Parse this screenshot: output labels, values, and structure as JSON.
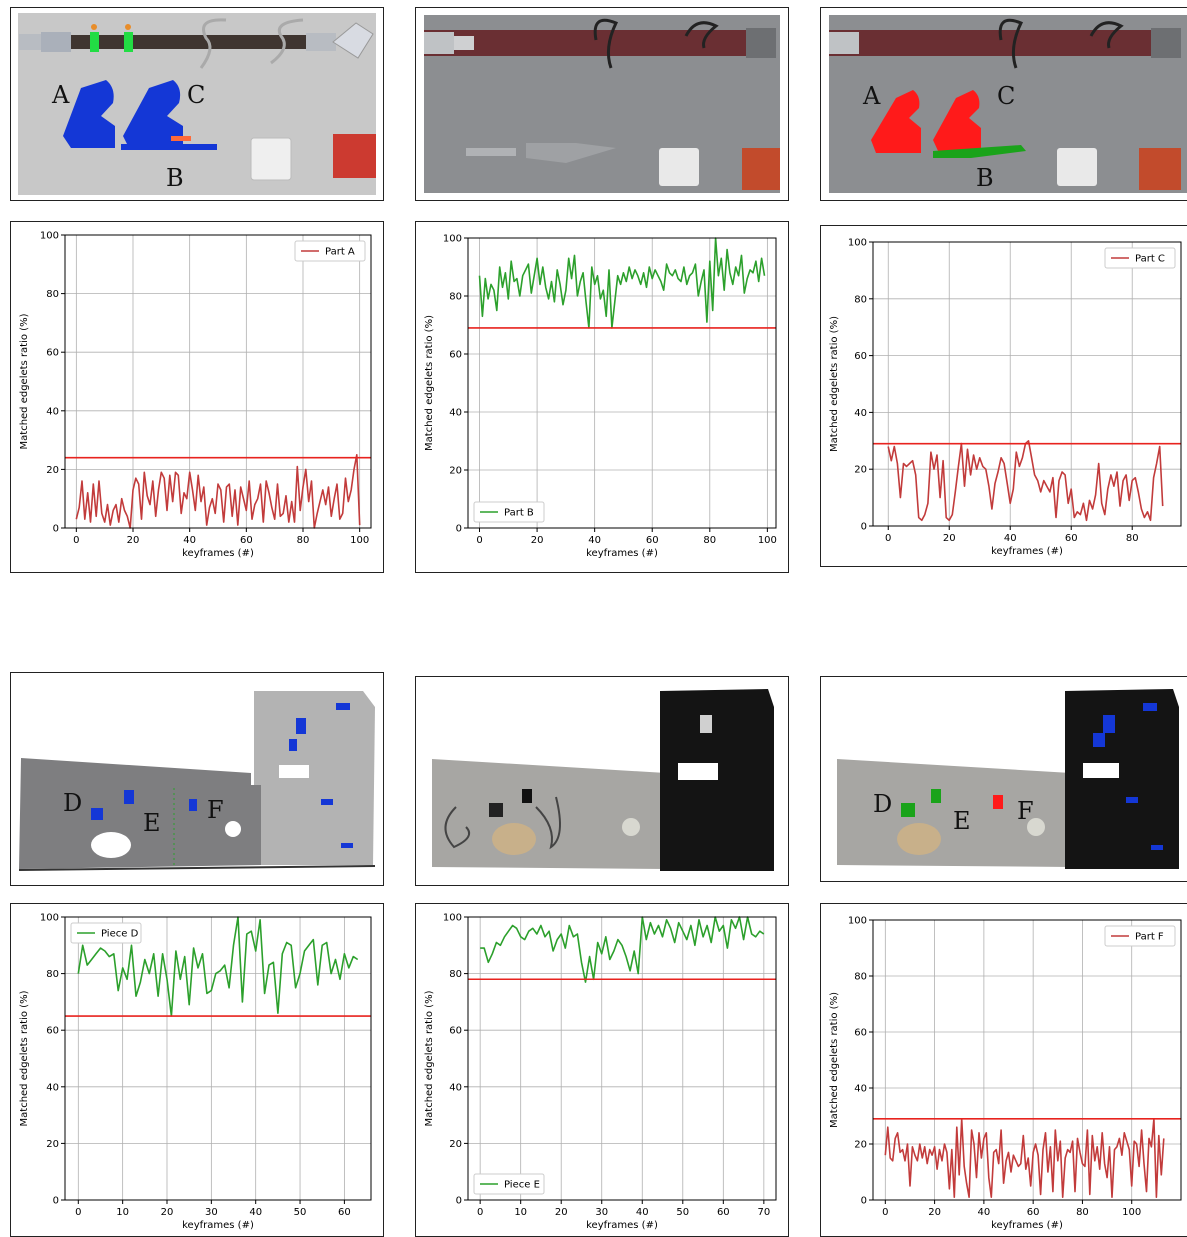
{
  "colors": {
    "detected": "#2ca02c",
    "not_detected": "#c23b3b",
    "threshold": "#e8231f",
    "model_part": "#1437d6",
    "overlay_red": "#ff1a1a",
    "overlay_green": "#1aa31a"
  },
  "images": {
    "top_cad": {
      "labels": [
        "A",
        "C",
        "B"
      ]
    },
    "top_photo": {},
    "top_overlay": {
      "labels": [
        "A",
        "C",
        "B"
      ]
    },
    "bottom_cad": {
      "labels": [
        "D",
        "E",
        "F"
      ]
    },
    "bottom_photo": {},
    "bottom_overlay": {
      "labels": [
        "D",
        "E",
        "F"
      ]
    }
  },
  "chart_data": [
    {
      "type": "line",
      "legend": "Part A",
      "legend_loc": "top-right",
      "color": "#c23b3b",
      "threshold": 24,
      "xlabel": "keyframes (#)",
      "ylabel": "Matched edgelets ratio (%)",
      "xlim": [
        -4,
        104
      ],
      "ylim": [
        0,
        100
      ],
      "xticks": [
        0,
        20,
        40,
        60,
        80,
        100
      ],
      "yticks": [
        0,
        20,
        40,
        60,
        80,
        100
      ],
      "grid": true,
      "values": [
        3,
        7,
        16,
        3,
        12,
        2,
        15,
        4,
        16,
        5,
        2,
        8,
        1,
        6,
        8,
        2,
        10,
        6,
        4,
        0,
        13,
        17,
        15,
        3,
        19,
        11,
        8,
        16,
        4,
        13,
        19,
        17,
        6,
        18,
        9,
        19,
        18,
        5,
        12,
        10,
        19,
        13,
        6,
        18,
        9,
        14,
        1,
        7,
        10,
        5,
        15,
        13,
        2,
        14,
        15,
        4,
        13,
        1,
        14,
        10,
        6,
        16,
        3,
        8,
        10,
        15,
        2,
        16,
        12,
        7,
        3,
        15,
        4,
        5,
        11,
        2,
        9,
        2,
        21,
        6,
        14,
        20,
        9,
        16,
        0,
        5,
        9,
        13,
        8,
        14,
        4,
        10,
        15,
        3,
        5,
        17,
        9,
        13,
        20,
        25,
        1
      ]
    },
    {
      "type": "line",
      "legend": "Part B",
      "legend_loc": "bottom-left",
      "color": "#2ca02c",
      "threshold": 69,
      "xlabel": "keyframes (#)",
      "ylabel": "Matched edgelets ratio (%)",
      "xlim": [
        -4,
        103
      ],
      "ylim": [
        0,
        100
      ],
      "xticks": [
        0,
        20,
        40,
        60,
        80,
        100
      ],
      "yticks": [
        0,
        20,
        40,
        60,
        80,
        100
      ],
      "grid": true,
      "values": [
        87,
        73,
        86,
        79,
        84,
        82,
        75,
        90,
        83,
        88,
        79,
        92,
        85,
        86,
        80,
        87,
        89,
        91,
        81,
        87,
        93,
        84,
        90,
        83,
        79,
        85,
        78,
        89,
        84,
        77,
        82,
        93,
        86,
        94,
        80,
        85,
        88,
        78,
        69,
        90,
        84,
        87,
        79,
        82,
        73,
        89,
        69,
        78,
        87,
        84,
        88,
        85,
        90,
        86,
        89,
        87,
        84,
        88,
        83,
        90,
        86,
        89,
        87,
        85,
        82,
        91,
        88,
        87,
        89,
        86,
        85,
        90,
        84,
        87,
        88,
        91,
        80,
        85,
        89,
        71,
        92,
        75,
        100,
        87,
        93,
        82,
        96,
        88,
        84,
        90,
        87,
        94,
        81,
        86,
        89,
        88,
        92,
        85,
        93,
        87
      ]
    },
    {
      "type": "line",
      "legend": "Part C",
      "legend_loc": "top-right",
      "color": "#c23b3b",
      "threshold": 29,
      "xlabel": "keyframes (#)",
      "ylabel": "Matched edgelets ratio (%)",
      "xlim": [
        -5,
        96
      ],
      "ylim": [
        0,
        100
      ],
      "xticks": [
        0,
        20,
        40,
        60,
        80
      ],
      "yticks": [
        0,
        20,
        40,
        60,
        80,
        100
      ],
      "grid": true,
      "values": [
        28,
        23,
        28,
        22,
        10,
        22,
        21,
        22,
        23,
        18,
        3,
        2,
        4,
        8,
        26,
        20,
        25,
        10,
        23,
        3,
        2,
        4,
        12,
        21,
        29,
        14,
        27,
        18,
        25,
        20,
        24,
        21,
        20,
        14,
        6,
        15,
        19,
        24,
        22,
        15,
        8,
        13,
        26,
        21,
        24,
        29,
        30,
        24,
        18,
        16,
        12,
        16,
        14,
        12,
        17,
        3,
        16,
        19,
        18,
        8,
        13,
        3,
        5,
        4,
        8,
        2,
        9,
        6,
        11,
        22,
        8,
        4,
        13,
        18,
        14,
        19,
        7,
        16,
        18,
        9,
        16,
        17,
        12,
        6,
        3,
        5,
        2,
        17,
        22,
        28,
        7
      ]
    },
    {
      "type": "line",
      "legend": "Piece D",
      "legend_loc": "top-left",
      "color": "#2ca02c",
      "threshold": 65,
      "xlabel": "keyframes (#)",
      "ylabel": "Matched edgelets ratio (%)",
      "xlim": [
        -3,
        66
      ],
      "ylim": [
        0,
        100
      ],
      "xticks": [
        0,
        10,
        20,
        30,
        40,
        50,
        60
      ],
      "yticks": [
        0,
        20,
        40,
        60,
        80,
        100
      ],
      "grid": true,
      "values": [
        80,
        90,
        83,
        85,
        87,
        89,
        88,
        86,
        87,
        74,
        82,
        78,
        90,
        72,
        77,
        85,
        80,
        87,
        72,
        87,
        78,
        65,
        88,
        78,
        86,
        69,
        89,
        82,
        87,
        73,
        74,
        80,
        81,
        83,
        75,
        90,
        100,
        70,
        94,
        95,
        88,
        99,
        73,
        83,
        84,
        66,
        87,
        91,
        90,
        75,
        80,
        88,
        90,
        92,
        76,
        90,
        91,
        80,
        85,
        78,
        87,
        82,
        86,
        85
      ]
    },
    {
      "type": "line",
      "legend": "Piece E",
      "legend_loc": "bottom-left",
      "color": "#2ca02c",
      "threshold": 78,
      "xlabel": "keyframes (#)",
      "ylabel": "Matched edgelets ratio (%)",
      "xlim": [
        -3,
        73
      ],
      "ylim": [
        0,
        100
      ],
      "xticks": [
        0,
        10,
        20,
        30,
        40,
        50,
        60,
        70
      ],
      "yticks": [
        0,
        20,
        40,
        60,
        80,
        100
      ],
      "grid": true,
      "values": [
        89,
        89,
        84,
        87,
        91,
        90,
        93,
        95,
        97,
        96,
        93,
        92,
        95,
        96,
        94,
        97,
        93,
        95,
        88,
        92,
        94,
        89,
        97,
        93,
        94,
        84,
        77,
        86,
        78,
        91,
        87,
        93,
        85,
        88,
        92,
        90,
        86,
        81,
        88,
        80,
        100,
        92,
        98,
        94,
        97,
        93,
        99,
        96,
        91,
        98,
        95,
        92,
        97,
        90,
        99,
        93,
        97,
        91,
        100,
        95,
        97,
        89,
        99,
        96,
        100,
        92,
        100,
        94,
        93,
        95,
        94
      ]
    },
    {
      "type": "line",
      "legend": "Part F",
      "legend_loc": "top-right",
      "color": "#c23b3b",
      "threshold": 29,
      "xlabel": "keyframes (#)",
      "ylabel": "Matched edgelets ratio (%)",
      "xlim": [
        -5,
        120
      ],
      "ylim": [
        0,
        100
      ],
      "xticks": [
        0,
        20,
        40,
        60,
        80,
        100
      ],
      "yticks": [
        0,
        20,
        40,
        60,
        80,
        100
      ],
      "grid": true,
      "values": [
        16,
        26,
        15,
        14,
        22,
        24,
        17,
        18,
        14,
        20,
        5,
        19,
        16,
        14,
        20,
        15,
        19,
        13,
        18,
        16,
        19,
        11,
        18,
        14,
        20,
        17,
        4,
        18,
        1,
        26,
        9,
        29,
        12,
        6,
        1,
        25,
        20,
        8,
        24,
        15,
        22,
        24,
        8,
        1,
        17,
        18,
        13,
        25,
        6,
        14,
        17,
        10,
        16,
        14,
        12,
        13,
        23,
        11,
        15,
        5,
        17,
        20,
        16,
        2,
        18,
        24,
        10,
        19,
        3,
        25,
        14,
        21,
        1,
        15,
        18,
        17,
        21,
        3,
        22,
        17,
        13,
        12,
        25,
        2,
        23,
        14,
        19,
        11,
        24,
        13,
        8,
        19,
        1,
        18,
        19,
        22,
        16,
        24,
        21,
        18,
        5,
        21,
        20,
        12,
        25,
        13,
        3,
        22,
        19,
        29,
        1,
        23,
        9,
        22
      ]
    }
  ]
}
